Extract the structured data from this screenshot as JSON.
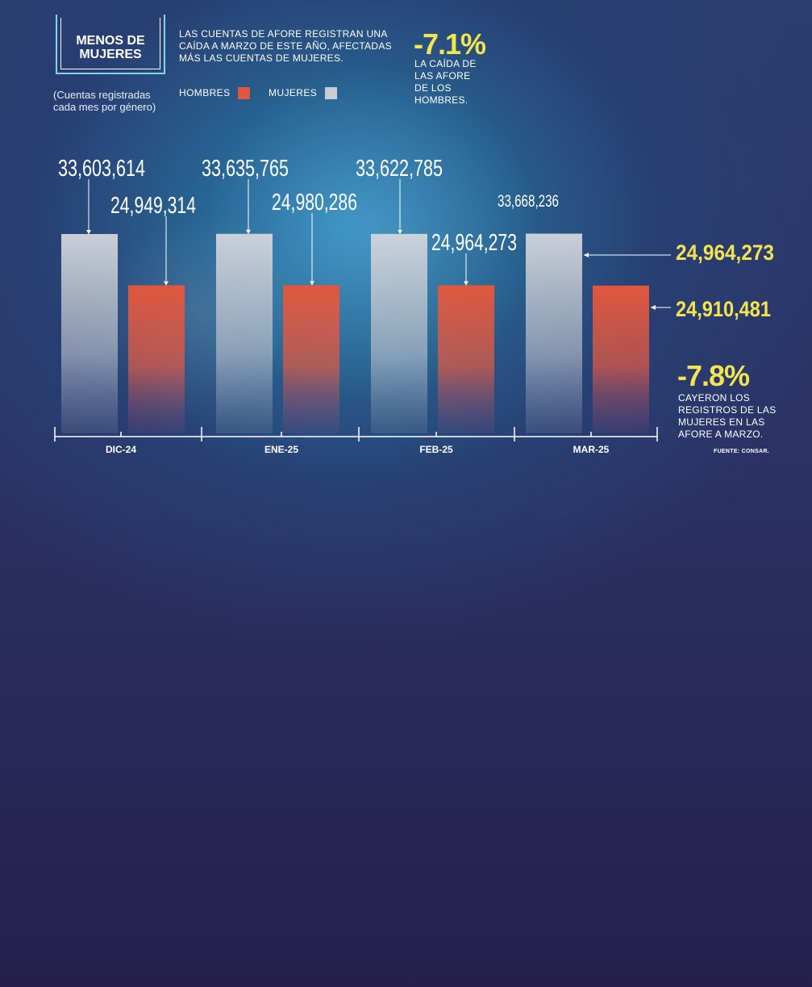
{
  "header": {
    "title_line1": "MENOS DE",
    "title_line2": "MUJERES",
    "subtitle_line1": "(Cuentas registradas",
    "subtitle_line2": "cada mes por género)",
    "description": "LAS CUENTAS DE AFORE REGISTRAN UNA CAÍDA A MARZO DE ESTE AÑO, AFECTADAS MÁS LAS CUENTAS DE MUJERES."
  },
  "legend": {
    "hombres": "HOMBRES",
    "mujeres": "MUJERES"
  },
  "colors": {
    "hombres": "#e0573d",
    "mujeres": "#c9ccd3",
    "highlight": "#f3e450"
  },
  "callouts": {
    "men_pct": "-7.1%",
    "men_text": "LA CAÍDA DE LAS AFORE DE LOS HOMBRES.",
    "women_pct": "-7.8%",
    "women_text": "CAYERON LOS REGISTROS DE LAS MUJERES EN LAS AFORE A MARZO."
  },
  "source": "FUENTE: CONSAR.",
  "chart_data": {
    "type": "bar",
    "categories": [
      "DIC-24",
      "ENE-25",
      "FEB-25",
      "MAR-25"
    ],
    "series": [
      {
        "name": "MUJERES",
        "values": [
          33603614,
          33635765,
          33622785,
          33668236
        ],
        "labels": [
          "33,603,614",
          "33,635,765",
          "33,622,785",
          "33,668,236"
        ]
      },
      {
        "name": "HOMBRES",
        "values": [
          24949314,
          24980286,
          24964273,
          24910481
        ],
        "labels": [
          "24,949,314",
          "24,980,286",
          "24,964,273",
          "24,910,481"
        ]
      }
    ],
    "side_labels": [
      "24,964,273",
      "24,910,481"
    ],
    "legend_position": "top"
  }
}
